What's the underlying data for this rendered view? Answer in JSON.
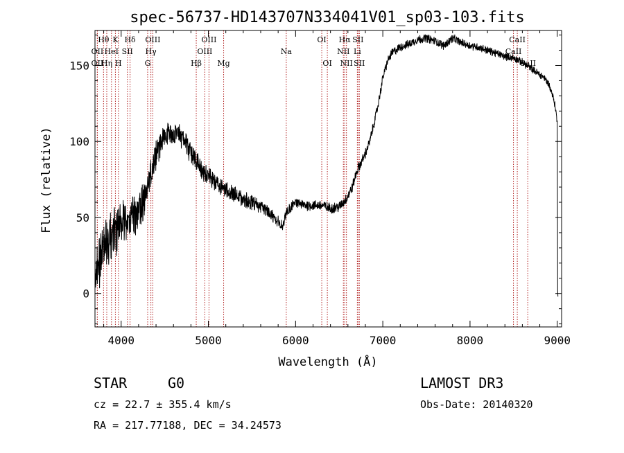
{
  "chart_data": {
    "type": "line",
    "title": "spec-56737-HD143707N334041V01_sp03-103.fits",
    "xlabel": "Wavelength (Å)",
    "ylabel": "Flux (relative)",
    "xlim": [
      3700,
      9050
    ],
    "ylim": [
      -22,
      173
    ],
    "xticks": [
      4000,
      5000,
      6000,
      7000,
      8000,
      9000
    ],
    "yticks": [
      0,
      50,
      100,
      150
    ],
    "spectrum_knots": [
      [
        3700,
        18
      ],
      [
        3750,
        22
      ],
      [
        3800,
        30
      ],
      [
        3850,
        34
      ],
      [
        3900,
        38
      ],
      [
        3950,
        42
      ],
      [
        4000,
        46
      ],
      [
        4050,
        48
      ],
      [
        4100,
        52
      ],
      [
        4150,
        50
      ],
      [
        4200,
        56
      ],
      [
        4250,
        60
      ],
      [
        4300,
        65
      ],
      [
        4350,
        80
      ],
      [
        4400,
        90
      ],
      [
        4450,
        100
      ],
      [
        4500,
        104
      ],
      [
        4550,
        106
      ],
      [
        4600,
        104
      ],
      [
        4650,
        105
      ],
      [
        4700,
        102
      ],
      [
        4750,
        98
      ],
      [
        4800,
        92
      ],
      [
        4850,
        88
      ],
      [
        4900,
        84
      ],
      [
        4950,
        80
      ],
      [
        5000,
        78
      ],
      [
        5100,
        72
      ],
      [
        5200,
        68
      ],
      [
        5300,
        65
      ],
      [
        5400,
        62
      ],
      [
        5500,
        60
      ],
      [
        5600,
        57
      ],
      [
        5700,
        53
      ],
      [
        5800,
        47
      ],
      [
        5850,
        44
      ],
      [
        5900,
        54
      ],
      [
        6000,
        60
      ],
      [
        6100,
        58
      ],
      [
        6200,
        58
      ],
      [
        6300,
        58
      ],
      [
        6400,
        56
      ],
      [
        6500,
        57
      ],
      [
        6550,
        60
      ],
      [
        6600,
        64
      ],
      [
        6650,
        70
      ],
      [
        6700,
        80
      ],
      [
        6750,
        86
      ],
      [
        6800,
        92
      ],
      [
        6850,
        100
      ],
      [
        6900,
        112
      ],
      [
        6950,
        125
      ],
      [
        7000,
        142
      ],
      [
        7050,
        152
      ],
      [
        7100,
        158
      ],
      [
        7200,
        162
      ],
      [
        7300,
        164
      ],
      [
        7400,
        167
      ],
      [
        7500,
        168
      ],
      [
        7600,
        166
      ],
      [
        7700,
        163
      ],
      [
        7800,
        168
      ],
      [
        7900,
        165
      ],
      [
        8000,
        163
      ],
      [
        8100,
        162
      ],
      [
        8200,
        160
      ],
      [
        8300,
        158
      ],
      [
        8400,
        156
      ],
      [
        8500,
        155
      ],
      [
        8600,
        152
      ],
      [
        8700,
        148
      ],
      [
        8800,
        144
      ],
      [
        8850,
        142
      ],
      [
        8900,
        138
      ],
      [
        8950,
        130
      ],
      [
        8980,
        122
      ],
      [
        9000,
        112
      ]
    ],
    "noise_bands": [
      [
        3700,
        16
      ],
      [
        4200,
        12
      ],
      [
        4500,
        7
      ],
      [
        5000,
        5
      ],
      [
        5600,
        4
      ],
      [
        5900,
        3
      ],
      [
        6600,
        3
      ],
      [
        7000,
        2.5
      ],
      [
        9000,
        2
      ]
    ],
    "line_markers": [
      {
        "name": "Hθ",
        "wavelength": 3798,
        "row": 0
      },
      {
        "name": "OII",
        "wavelength": 3727,
        "row": 1
      },
      {
        "name": "OII",
        "wavelength": 3727,
        "row": 2
      },
      {
        "name": "Hη",
        "wavelength": 3835,
        "row": 2
      },
      {
        "name": "HeI",
        "wavelength": 3889,
        "row": 1
      },
      {
        "name": "K",
        "wavelength": 3934,
        "row": 0
      },
      {
        "name": "H",
        "wavelength": 3969,
        "row": 2
      },
      {
        "name": "SII",
        "wavelength": 4072,
        "row": 1
      },
      {
        "name": "Hδ",
        "wavelength": 4102,
        "row": 0
      },
      {
        "name": "OIII",
        "wavelength": 4363,
        "row": 0
      },
      {
        "name": "Hγ",
        "wavelength": 4341,
        "row": 1
      },
      {
        "name": "G",
        "wavelength": 4304,
        "row": 2
      },
      {
        "name": "Hβ",
        "wavelength": 4861,
        "row": 2
      },
      {
        "name": "OIII",
        "wavelength": 5007,
        "row": 0
      },
      {
        "name": "OIII",
        "wavelength": 4959,
        "row": 1
      },
      {
        "name": "Mg",
        "wavelength": 5175,
        "row": 2
      },
      {
        "name": "Na",
        "wavelength": 5893,
        "row": 1
      },
      {
        "name": "OI",
        "wavelength": 6300,
        "row": 0
      },
      {
        "name": "OI",
        "wavelength": 6364,
        "row": 2
      },
      {
        "name": "Hα",
        "wavelength": 6563,
        "row": 0
      },
      {
        "name": "NII",
        "wavelength": 6548,
        "row": 1
      },
      {
        "name": "NII",
        "wavelength": 6583,
        "row": 2
      },
      {
        "name": "SII",
        "wavelength": 6716,
        "row": 0
      },
      {
        "name": "Li",
        "wavelength": 6708,
        "row": 1
      },
      {
        "name": "SII",
        "wavelength": 6731,
        "row": 2
      },
      {
        "name": "CaII",
        "wavelength": 8542,
        "row": 0
      },
      {
        "name": "CaII",
        "wavelength": 8498,
        "row": 1
      },
      {
        "name": "CaII",
        "wavelength": 8662,
        "row": 2
      }
    ]
  },
  "info": {
    "class_label": "STAR",
    "subclass": "G0",
    "survey": "LAMOST DR3",
    "cz": "cz = 22.7 ± 355.4 km/s",
    "obs_date": "Obs-Date: 20140320",
    "coords": "RA = 217.77188, DEC =  34.24573"
  },
  "colors": {
    "line_marker": "#b22222",
    "spectrum": "#000000"
  }
}
